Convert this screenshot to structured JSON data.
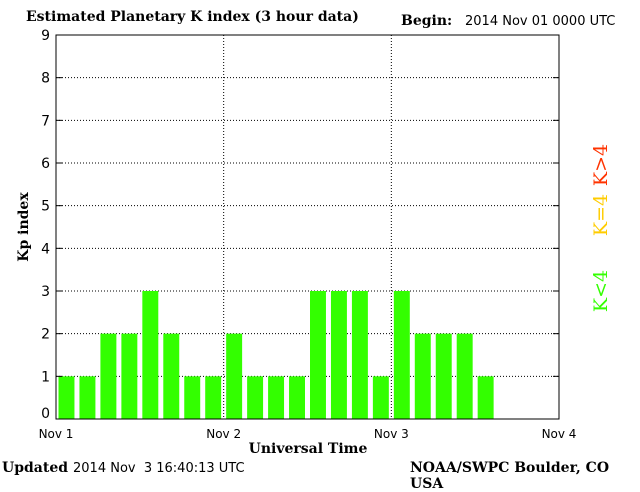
{
  "header": {
    "title": "Estimated Planetary K index (3 hour data)",
    "begin_label": "Begin:",
    "begin_value": "2014 Nov 01 0000 UTC"
  },
  "footer": {
    "updated_label": "Updated",
    "updated_value": "2014 Nov  3 16:40:13 UTC",
    "credit": "NOAA/SWPC Boulder, CO USA"
  },
  "legend": [
    {
      "label": "K>4",
      "color": "#ff3300"
    },
    {
      "label": "K=4",
      "color": "#ffcc00"
    },
    {
      "label": "K<4",
      "color": "#33ff00"
    }
  ],
  "chart_data": {
    "type": "bar",
    "title": "Estimated Planetary K index (3 hour data)",
    "xlabel": "Universal Time",
    "ylabel": "Kp index",
    "ylim": [
      0,
      9
    ],
    "yticks": [
      0,
      1,
      2,
      3,
      4,
      5,
      6,
      7,
      8,
      9
    ],
    "x_ticks": [
      "Nov 1",
      "Nov 2",
      "Nov 3",
      "Nov 4"
    ],
    "interval_hours": 3,
    "bar_color": "#33ff00",
    "grid": true,
    "values": [
      1,
      1,
      2,
      2,
      3,
      2,
      1,
      1,
      2,
      1,
      1,
      1,
      3,
      3,
      3,
      1,
      3,
      2,
      2,
      2,
      1
    ]
  }
}
